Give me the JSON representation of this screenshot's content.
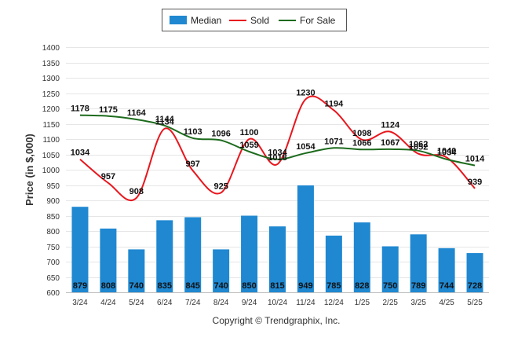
{
  "chart_data": {
    "type": "bar",
    "categories": [
      "3/24",
      "4/24",
      "5/24",
      "6/24",
      "7/24",
      "8/24",
      "9/24",
      "10/24",
      "11/24",
      "12/24",
      "1/25",
      "2/25",
      "3/25",
      "4/25",
      "5/25"
    ],
    "ylabel": "Price (in $,000)",
    "ylim": [
      600,
      1400
    ],
    "yticks": [
      600,
      650,
      700,
      750,
      800,
      850,
      900,
      950,
      1000,
      1050,
      1100,
      1150,
      1200,
      1250,
      1300,
      1350,
      1400
    ],
    "grid": true,
    "legend": "top-center",
    "series": [
      {
        "name": "Median",
        "type": "bar",
        "color": "#1f88d1",
        "values": [
          879,
          808,
          740,
          835,
          845,
          740,
          850,
          815,
          949,
          785,
          828,
          750,
          789,
          744,
          728
        ]
      },
      {
        "name": "Sold",
        "type": "line",
        "color": "#e8161d",
        "values": [
          1034,
          957,
          908,
          1134,
          997,
          925,
          1100,
          1018,
          1230,
          1194,
          1098,
          1124,
          1052,
          1040,
          939
        ]
      },
      {
        "name": "For Sale",
        "type": "line",
        "color": "#1d6b1d",
        "values": [
          1178,
          1175,
          1164,
          1144,
          1103,
          1096,
          1059,
          1034,
          1054,
          1071,
          1066,
          1067,
          1062,
          1034,
          1014
        ]
      }
    ]
  },
  "copyright": "Copyright © Trendgraphix, Inc."
}
